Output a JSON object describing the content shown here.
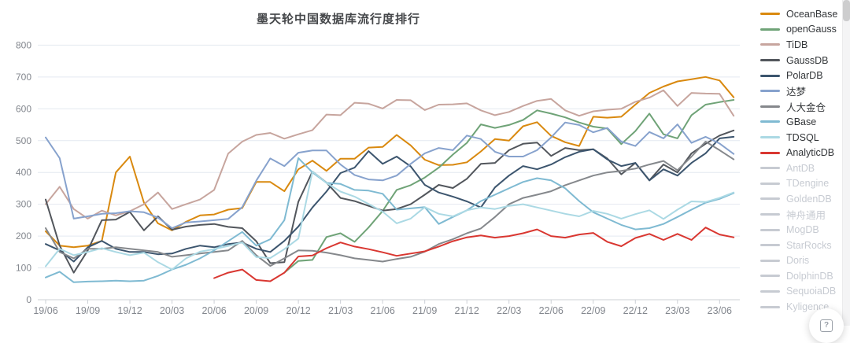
{
  "chart_data": {
    "type": "line",
    "title": "墨天轮中国数据库流行度排行",
    "xlabel": "",
    "ylabel": "",
    "ylim": [
      0,
      800
    ],
    "y_ticks": [
      0,
      100,
      200,
      300,
      400,
      500,
      600,
      700,
      800
    ],
    "grid": true,
    "legend_position": "right",
    "x_months": [
      "19/06",
      "19/07",
      "19/08",
      "19/09",
      "19/10",
      "19/11",
      "19/12",
      "20/01",
      "20/02",
      "20/03",
      "20/04",
      "20/05",
      "20/06",
      "20/07",
      "20/08",
      "20/09",
      "20/10",
      "20/11",
      "20/12",
      "21/01",
      "21/02",
      "21/03",
      "21/04",
      "21/05",
      "21/06",
      "21/07",
      "21/08",
      "21/09",
      "21/10",
      "21/11",
      "21/12",
      "22/01",
      "22/02",
      "22/03",
      "22/04",
      "22/05",
      "22/06",
      "22/07",
      "22/08",
      "22/09",
      "22/10",
      "22/11",
      "22/12",
      "23/01",
      "23/02",
      "23/03",
      "23/04",
      "23/05",
      "23/06",
      "23/07"
    ],
    "x_tick_labels": [
      "19/06",
      "19/09",
      "19/12",
      "20/03",
      "20/06",
      "20/09",
      "20/12",
      "21/03",
      "21/06",
      "21/09",
      "21/12",
      "22/03",
      "22/06",
      "22/09",
      "22/12",
      "23/03",
      "23/06"
    ],
    "series": [
      {
        "name": "OceanBase",
        "color": "#d9890f",
        "values": [
          215,
          170,
          165,
          170,
          185,
          400,
          450,
          305,
          240,
          218,
          245,
          265,
          268,
          283,
          288,
          370,
          370,
          341,
          410,
          437,
          405,
          443,
          443,
          478,
          480,
          518,
          485,
          440,
          423,
          424,
          432,
          466,
          505,
          500,
          545,
          558,
          515,
          495,
          483,
          575,
          572,
          575,
          613,
          650,
          670,
          686,
          693,
          700,
          689,
          636
        ]
      },
      {
        "name": "openGauss",
        "color": "#6fa377",
        "values": [
          null,
          null,
          null,
          null,
          null,
          null,
          null,
          null,
          null,
          null,
          null,
          null,
          null,
          null,
          null,
          null,
          null,
          85,
          122,
          125,
          197,
          209,
          182,
          227,
          279,
          345,
          360,
          384,
          415,
          456,
          493,
          551,
          540,
          549,
          565,
          595,
          585,
          573,
          557,
          544,
          538,
          489,
          530,
          585,
          520,
          507,
          580,
          613,
          621,
          628
        ]
      },
      {
        "name": "TiDB",
        "color": "#c7a59e",
        "values": [
          300,
          355,
          285,
          255,
          280,
          265,
          278,
          300,
          337,
          285,
          300,
          315,
          345,
          459,
          497,
          518,
          524,
          506,
          520,
          533,
          582,
          580,
          619,
          616,
          601,
          628,
          627,
          596,
          613,
          614,
          617,
          595,
          580,
          590,
          609,
          625,
          631,
          595,
          578,
          592,
          597,
          600,
          622,
          635,
          658,
          609,
          650,
          648,
          647,
          578
        ]
      },
      {
        "name": "GaussDB",
        "color": "#52565c",
        "values": [
          315,
          170,
          85,
          155,
          250,
          252,
          276,
          218,
          262,
          220,
          230,
          235,
          238,
          229,
          225,
          184,
          115,
          118,
          308,
          403,
          368,
          320,
          310,
          295,
          280,
          285,
          300,
          330,
          361,
          351,
          380,
          427,
          430,
          470,
          490,
          494,
          452,
          477,
          470,
          473,
          444,
          394,
          430,
          375,
          425,
          400,
          460,
          490,
          516,
          532
        ]
      },
      {
        "name": "PolarDB",
        "color": "#3c556e",
        "values": [
          175,
          155,
          120,
          165,
          185,
          160,
          150,
          150,
          143,
          145,
          160,
          170,
          165,
          175,
          180,
          160,
          150,
          185,
          230,
          290,
          340,
          398,
          415,
          467,
          427,
          450,
          419,
          361,
          337,
          324,
          309,
          290,
          353,
          390,
          420,
          410,
          425,
          448,
          465,
          473,
          441,
          420,
          430,
          375,
          410,
          390,
          430,
          460,
          507,
          512
        ]
      },
      {
        "name": "达梦",
        "color": "#87a2cd",
        "values": [
          510,
          445,
          255,
          262,
          270,
          272,
          278,
          275,
          258,
          225,
          243,
          246,
          250,
          254,
          291,
          374,
          444,
          420,
          462,
          469,
          469,
          425,
          392,
          378,
          375,
          390,
          427,
          460,
          477,
          470,
          516,
          505,
          465,
          450,
          450,
          470,
          510,
          557,
          549,
          526,
          540,
          497,
          483,
          527,
          507,
          551,
          493,
          512,
          491,
          458
        ]
      },
      {
        "name": "人大金仓",
        "color": "#85888c",
        "values": [
          225,
          150,
          130,
          160,
          160,
          165,
          160,
          155,
          150,
          135,
          140,
          145,
          150,
          155,
          185,
          140,
          106,
          130,
          155,
          154,
          148,
          140,
          130,
          125,
          120,
          128,
          135,
          151,
          175,
          190,
          209,
          224,
          260,
          300,
          320,
          330,
          341,
          360,
          375,
          390,
          400,
          405,
          412,
          425,
          436,
          407,
          450,
          497,
          470,
          441
        ]
      },
      {
        "name": "GBase",
        "color": "#7fbad2",
        "values": [
          70,
          88,
          55,
          57,
          58,
          60,
          58,
          60,
          75,
          95,
          110,
          130,
          155,
          184,
          213,
          170,
          190,
          250,
          445,
          400,
          367,
          364,
          345,
          343,
          333,
          283,
          287,
          291,
          238,
          260,
          281,
          310,
          330,
          350,
          370,
          382,
          375,
          350,
          310,
          275,
          255,
          235,
          221,
          225,
          238,
          260,
          283,
          305,
          317,
          335
        ]
      },
      {
        "name": "TDSQL",
        "color": "#abd9e4",
        "values": [
          105,
          160,
          140,
          150,
          162,
          150,
          140,
          148,
          118,
          95,
          130,
          151,
          159,
          169,
          180,
          134,
          131,
          159,
          192,
          403,
          367,
          340,
          324,
          301,
          277,
          240,
          255,
          291,
          270,
          262,
          281,
          290,
          285,
          295,
          300,
          290,
          280,
          270,
          262,
          279,
          270,
          255,
          269,
          281,
          254,
          283,
          309,
          307,
          320,
          337
        ]
      },
      {
        "name": "AnalyticDB",
        "color": "#d93731",
        "values": [
          null,
          null,
          null,
          null,
          null,
          null,
          null,
          null,
          null,
          null,
          null,
          null,
          68,
          85,
          95,
          62,
          58,
          85,
          136,
          139,
          162,
          180,
          167,
          159,
          149,
          138,
          145,
          152,
          167,
          184,
          196,
          202,
          195,
          200,
          209,
          221,
          200,
          195,
          205,
          210,
          182,
          168,
          194,
          207,
          188,
          207,
          188,
          227,
          205,
          196
        ]
      }
    ],
    "disabled_series": [
      "AntDB",
      "TDengine",
      "GoldenDB",
      "神舟通用",
      "MogDB",
      "StarRocks",
      "Doris",
      "DolphinDB",
      "SequoiaDB",
      "Kyligence"
    ],
    "colors": {
      "grid_line": "#e4e9f0",
      "axis_line": "#ccd0d6",
      "axis_text": "#83878e",
      "disabled_legend": "#c7cbd2"
    }
  },
  "floating_button": {
    "glyph": "?"
  }
}
